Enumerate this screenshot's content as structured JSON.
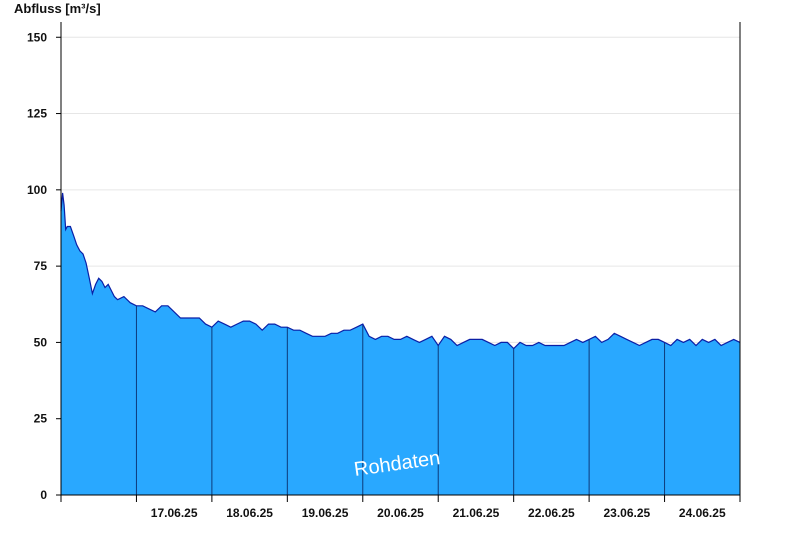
{
  "chart_data": {
    "type": "area",
    "title": "",
    "ylabel": "Abfluss [m³/s]",
    "xlabel": "",
    "ylim": [
      0,
      155
    ],
    "yticks": [
      0,
      25,
      50,
      75,
      100,
      125,
      150
    ],
    "x_start": "16.06.25 00:00",
    "x_end": "24.06.25 24:00",
    "xtick_labels": [
      "17.06.25",
      "18.06.25",
      "19.06.25",
      "20.06.25",
      "21.06.25",
      "22.06.25",
      "23.06.25",
      "24.06.25"
    ],
    "grid": true,
    "annotation": "Rohdaten",
    "colors": {
      "fill": "#29a8ff",
      "line": "#0a1fa6",
      "day_separator": "#0d3a7a",
      "grid": "#e6e6e6",
      "axis": "#000000"
    },
    "series": [
      {
        "x_hours": [
          0,
          0.5,
          1,
          1.5,
          2,
          3,
          4,
          5,
          6,
          7,
          8,
          9,
          10,
          11,
          12,
          13,
          14,
          15,
          16,
          17,
          18,
          20,
          22,
          24,
          26,
          28,
          30,
          32,
          34,
          36,
          38,
          40,
          42,
          44,
          46,
          48,
          50,
          52,
          54,
          56,
          58,
          60,
          62,
          64,
          66,
          68,
          70,
          72,
          74,
          76,
          78,
          80,
          82,
          84,
          86,
          88,
          90,
          92,
          94,
          96,
          98,
          100,
          102,
          104,
          106,
          108,
          110,
          112,
          114,
          116,
          118,
          120,
          122,
          124,
          126,
          128,
          130,
          132,
          134,
          136,
          138,
          140,
          142,
          144,
          146,
          148,
          150,
          152,
          154,
          156,
          158,
          160,
          162,
          164,
          166,
          168,
          170,
          172,
          174,
          176,
          178,
          180,
          182,
          184,
          186,
          188,
          190,
          192,
          194,
          196,
          198,
          200,
          202,
          204,
          206,
          208,
          210,
          212,
          214,
          216
        ],
        "values": [
          93,
          99,
          95,
          87,
          88,
          88,
          85,
          82,
          80,
          79,
          76,
          71,
          66,
          69,
          71,
          70,
          68,
          69,
          67,
          65,
          64,
          65,
          63,
          62,
          62,
          61,
          60,
          62,
          62,
          60,
          58,
          58,
          58,
          58,
          56,
          55,
          57,
          56,
          55,
          56,
          57,
          57,
          56,
          54,
          56,
          56,
          55,
          55,
          54,
          54,
          53,
          52,
          52,
          52,
          53,
          53,
          54,
          54,
          55,
          56,
          52,
          51,
          52,
          52,
          51,
          51,
          52,
          51,
          50,
          51,
          52,
          49,
          52,
          51,
          49,
          50,
          51,
          51,
          51,
          50,
          49,
          50,
          50,
          48,
          50,
          49,
          49,
          50,
          49,
          49,
          49,
          49,
          50,
          51,
          50,
          51,
          52,
          50,
          51,
          53,
          52,
          51,
          50,
          49,
          50,
          51,
          51,
          50,
          49,
          51,
          50,
          51,
          49,
          51,
          50,
          51,
          49,
          50,
          51,
          50
        ]
      }
    ]
  }
}
